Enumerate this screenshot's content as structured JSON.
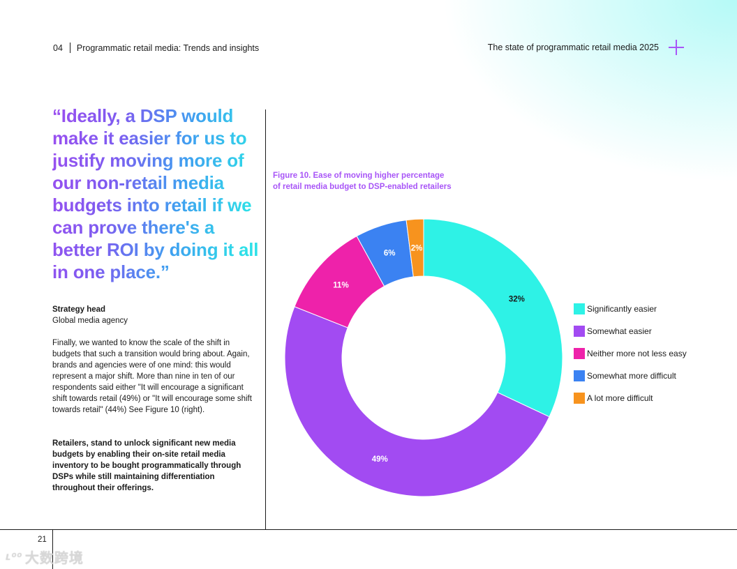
{
  "header": {
    "section_number": "04",
    "section_title": "Programmatic retail media: Trends and insights",
    "report_title": "The state of programmatic retail media 2025"
  },
  "quote": {
    "text": "“Ideally, a DSP would make it easier for us to justify moving more of our non-retail media budgets into retail if we can prove there's a better ROI by doing it all in one place.”"
  },
  "attribution": {
    "name": "Strategy head",
    "organization": "Global media agency"
  },
  "body": {
    "paragraph": "Finally, we wanted to know the scale of the shift in budgets that such a transition would bring about. Again, brands and agencies were of one mind: this would represent a major shift. More than nine in ten of our respondents said either \"It will encourage a significant shift towards retail (49%) or \"It will encourage some shift towards retail\" (44%) See Figure 10 (right).",
    "callout": "Retailers, stand to unlock significant new media budgets by enabling their on-site retail media inventory to be bought programmatically through DSPs while still maintaining differentiation throughout their offerings."
  },
  "figure": {
    "title_line1": "Figure 10. Ease of moving higher percentage",
    "title_line2": "of retail media budget to DSP-enabled retailers"
  },
  "chart_data": {
    "type": "pie",
    "variant": "donut",
    "title": "Figure 10. Ease of moving higher percentage of retail media budget to DSP-enabled retailers",
    "categories": [
      "Significantly easier",
      "Somewhat easier",
      "Neither more not less easy",
      "Somewhat more difficult",
      "A lot more difficult"
    ],
    "values": [
      32,
      49,
      11,
      6,
      2
    ],
    "labels": [
      "32%",
      "49%",
      "11%",
      "6%",
      "2%"
    ],
    "colors": [
      "#2ef2e6",
      "#a24bf2",
      "#ee22aa",
      "#3b82f2",
      "#f7931e"
    ],
    "legend_position": "right"
  },
  "footer": {
    "page_number": "21",
    "watermark_text": "大数跨境"
  }
}
